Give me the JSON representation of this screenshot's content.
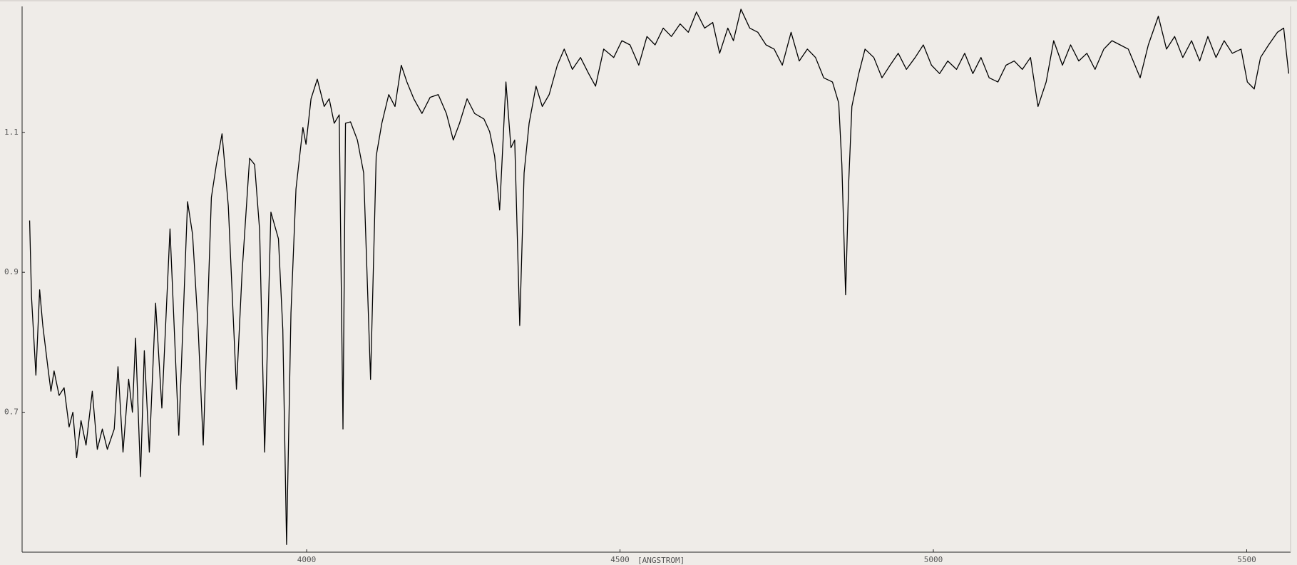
{
  "chart_data": {
    "type": "line",
    "x_label": "[ANGSTROM]",
    "color": "#000000",
    "xlim": [
      3546,
      5570
    ],
    "ylim": [
      0.5,
      1.28
    ],
    "xticks": [
      4000,
      4500,
      5000,
      5500
    ],
    "yticks": [
      0.7,
      0.9,
      1.1
    ],
    "x": [
      3558,
      3561,
      3568,
      3574,
      3579,
      3587,
      3592,
      3597,
      3605,
      3613,
      3621,
      3627,
      3633,
      3640,
      3648,
      3658,
      3666,
      3674,
      3682,
      3693,
      3699,
      3707,
      3716,
      3722,
      3727,
      3735,
      3741,
      3749,
      3759,
      3769,
      3782,
      3796,
      3810,
      3818,
      3827,
      3835,
      3848,
      3856,
      3865,
      3875,
      3888,
      3897,
      3909,
      3917,
      3925,
      3933,
      3943,
      3955,
      3962,
      3968,
      3975,
      3983,
      3994,
      3999,
      4007,
      4017,
      4028,
      4036,
      4044,
      4052,
      4058,
      4062,
      4070,
      4081,
      4091,
      4102,
      4111,
      4120,
      4131,
      4141,
      4151,
      4160,
      4171,
      4184,
      4197,
      4210,
      4223,
      4234,
      4244,
      4256,
      4268,
      4283,
      4292,
      4300,
      4308,
      4318,
      4326,
      4332,
      4340,
      4347,
      4355,
      4366,
      4376,
      4387,
      4400,
      4411,
      4424,
      4437,
      4450,
      4461,
      4474,
      4490,
      4503,
      4516,
      4530,
      4543,
      4556,
      4569,
      4582,
      4596,
      4609,
      4622,
      4635,
      4648,
      4659,
      4672,
      4681,
      4693,
      4707,
      4720,
      4733,
      4746,
      4759,
      4773,
      4786,
      4799,
      4812,
      4825,
      4839,
      4849,
      4854,
      4860,
      4865,
      4870,
      4881,
      4891,
      4905,
      4918,
      4931,
      4944,
      4957,
      4971,
      4984,
      4997,
      5010,
      5023,
      5037,
      5050,
      5063,
      5076,
      5089,
      5103,
      5116,
      5129,
      5142,
      5155,
      5167,
      5180,
      5192,
      5206,
      5219,
      5232,
      5245,
      5258,
      5272,
      5285,
      5298,
      5311,
      5330,
      5343,
      5359,
      5372,
      5385,
      5398,
      5412,
      5425,
      5438,
      5451,
      5464,
      5477,
      5491,
      5501,
      5512,
      5522,
      5535,
      5549,
      5559,
      5567
    ],
    "values": [
      0.974,
      0.865,
      0.753,
      0.875,
      0.824,
      0.765,
      0.73,
      0.759,
      0.724,
      0.735,
      0.679,
      0.7,
      0.635,
      0.688,
      0.653,
      0.73,
      0.647,
      0.676,
      0.647,
      0.676,
      0.765,
      0.643,
      0.747,
      0.7,
      0.806,
      0.608,
      0.788,
      0.643,
      0.856,
      0.706,
      0.962,
      0.667,
      1.001,
      0.954,
      0.818,
      0.653,
      1.007,
      1.054,
      1.098,
      0.995,
      0.733,
      0.9,
      1.063,
      1.054,
      0.96,
      0.643,
      0.986,
      0.948,
      0.818,
      0.511,
      0.842,
      1.019,
      1.107,
      1.083,
      1.148,
      1.176,
      1.137,
      1.148,
      1.113,
      1.125,
      0.676,
      1.113,
      1.115,
      1.089,
      1.042,
      0.747,
      1.066,
      1.113,
      1.154,
      1.137,
      1.196,
      1.172,
      1.148,
      1.127,
      1.15,
      1.154,
      1.127,
      1.089,
      1.113,
      1.148,
      1.127,
      1.119,
      1.101,
      1.066,
      0.989,
      1.172,
      1.078,
      1.089,
      0.824,
      1.042,
      1.113,
      1.166,
      1.137,
      1.154,
      1.196,
      1.219,
      1.19,
      1.207,
      1.184,
      1.166,
      1.219,
      1.207,
      1.231,
      1.225,
      1.196,
      1.237,
      1.225,
      1.249,
      1.237,
      1.255,
      1.243,
      1.272,
      1.249,
      1.257,
      1.213,
      1.249,
      1.231,
      1.276,
      1.249,
      1.243,
      1.225,
      1.219,
      1.196,
      1.243,
      1.202,
      1.219,
      1.207,
      1.178,
      1.172,
      1.142,
      1.054,
      0.868,
      1.03,
      1.137,
      1.184,
      1.219,
      1.207,
      1.178,
      1.196,
      1.213,
      1.19,
      1.207,
      1.225,
      1.196,
      1.184,
      1.202,
      1.19,
      1.213,
      1.184,
      1.207,
      1.178,
      1.172,
      1.196,
      1.202,
      1.19,
      1.207,
      1.137,
      1.172,
      1.231,
      1.196,
      1.225,
      1.202,
      1.213,
      1.19,
      1.219,
      1.231,
      1.225,
      1.219,
      1.178,
      1.225,
      1.266,
      1.219,
      1.237,
      1.207,
      1.231,
      1.202,
      1.237,
      1.207,
      1.231,
      1.213,
      1.219,
      1.172,
      1.162,
      1.207,
      1.225,
      1.243,
      1.249,
      1.184
    ]
  }
}
